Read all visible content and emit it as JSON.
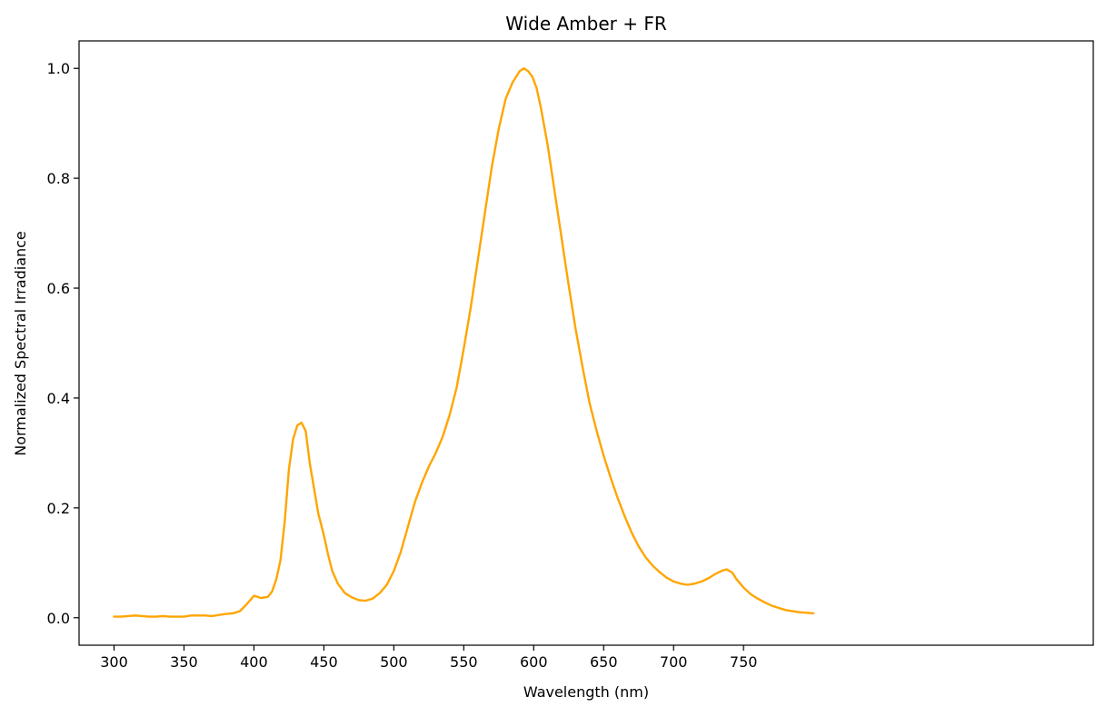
{
  "chart_data": {
    "type": "line",
    "title": "Wide Amber + FR",
    "xlabel": "Wavelength (nm)",
    "ylabel": "Normalized Spectral Irradiance",
    "xlim": [
      275,
      1000
    ],
    "ylim": [
      -0.05,
      1.05
    ],
    "xticks": [
      300,
      350,
      400,
      450,
      500,
      550,
      600,
      650,
      700,
      750
    ],
    "yticks": [
      0.0,
      0.2,
      0.4,
      0.6,
      0.8,
      1.0
    ],
    "xtick_labels": [
      "300",
      "350",
      "400",
      "450",
      "500",
      "550",
      "600",
      "650",
      "700",
      "750"
    ],
    "ytick_labels": [
      "0.0",
      "0.2",
      "0.4",
      "0.6",
      "0.8",
      "1.0"
    ],
    "grid": false,
    "legend": "none",
    "series": [
      {
        "color": "#FFA500",
        "x": [
          300,
          305,
          310,
          315,
          320,
          325,
          330,
          335,
          340,
          345,
          350,
          355,
          360,
          365,
          370,
          375,
          380,
          385,
          390,
          395,
          400,
          405,
          410,
          413,
          416,
          419,
          422,
          425,
          428,
          431,
          434,
          437,
          440,
          443,
          446,
          450,
          453,
          456,
          460,
          465,
          470,
          475,
          480,
          485,
          490,
          495,
          500,
          505,
          510,
          515,
          520,
          525,
          530,
          535,
          540,
          545,
          550,
          555,
          560,
          565,
          570,
          575,
          580,
          585,
          590,
          593,
          596,
          599,
          602,
          605,
          610,
          615,
          620,
          625,
          630,
          635,
          640,
          645,
          650,
          655,
          660,
          665,
          670,
          675,
          680,
          685,
          690,
          695,
          700,
          705,
          710,
          715,
          720,
          725,
          730,
          735,
          738,
          742,
          745,
          750,
          755,
          760,
          765,
          770,
          775,
          780,
          785,
          790,
          795,
          800
        ],
        "y": [
          0.002,
          0.002,
          0.003,
          0.004,
          0.003,
          0.002,
          0.002,
          0.003,
          0.002,
          0.002,
          0.002,
          0.004,
          0.004,
          0.004,
          0.003,
          0.005,
          0.007,
          0.008,
          0.012,
          0.025,
          0.04,
          0.036,
          0.038,
          0.048,
          0.07,
          0.105,
          0.175,
          0.27,
          0.325,
          0.35,
          0.355,
          0.34,
          0.28,
          0.235,
          0.19,
          0.15,
          0.115,
          0.085,
          0.062,
          0.045,
          0.037,
          0.032,
          0.031,
          0.035,
          0.045,
          0.06,
          0.085,
          0.12,
          0.165,
          0.21,
          0.245,
          0.275,
          0.3,
          0.33,
          0.37,
          0.42,
          0.49,
          0.565,
          0.65,
          0.735,
          0.82,
          0.89,
          0.945,
          0.975,
          0.995,
          1.0,
          0.995,
          0.985,
          0.965,
          0.93,
          0.86,
          0.775,
          0.69,
          0.605,
          0.525,
          0.455,
          0.39,
          0.34,
          0.295,
          0.255,
          0.218,
          0.185,
          0.155,
          0.13,
          0.11,
          0.095,
          0.083,
          0.073,
          0.066,
          0.062,
          0.06,
          0.062,
          0.066,
          0.072,
          0.08,
          0.086,
          0.088,
          0.082,
          0.07,
          0.055,
          0.043,
          0.035,
          0.028,
          0.022,
          0.018,
          0.014,
          0.012,
          0.01,
          0.009,
          0.008
        ]
      }
    ]
  }
}
